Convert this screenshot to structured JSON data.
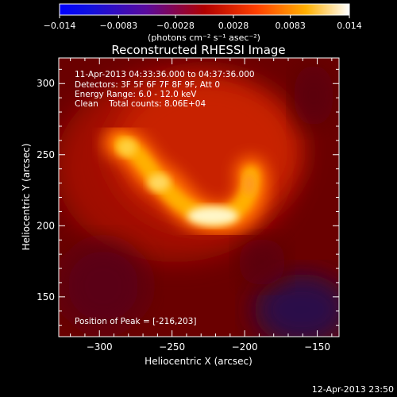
{
  "chart_data": {
    "type": "heatmap",
    "title": "Reconstructed RHESSI Image",
    "xlabel": "Heliocentric X (arcsec)",
    "ylabel": "Heliocentric Y (arcsec)",
    "xlim": [
      -328,
      -135
    ],
    "ylim": [
      122,
      318
    ],
    "x_ticks": [
      -300,
      -250,
      -200,
      -150
    ],
    "y_ticks": [
      150,
      200,
      250,
      300
    ],
    "colorbar": {
      "label": "(photons cm⁻² s⁻¹ asec⁻²)",
      "min": -0.014,
      "max": 0.014,
      "tick_labels": [
        "-0.014",
        "-0.0083",
        "-0.0028",
        "0.0028",
        "0.0083",
        "0.014"
      ],
      "colormap": "blue-purple-red-orange-yellow-white"
    },
    "annotations": {
      "time_range": "11-Apr-2013 04:33:36.000 to 04:37:36.000",
      "detectors": "Detectors: 3F 5F 6F 7F 8F 9F, Att 0",
      "energy": "Energy Range: 6.0 - 12.0 keV",
      "clean_counts": "Clean    Total counts: 8.06E+04",
      "peak": "Position of Peak = [-216,203]"
    },
    "source_peaks": [
      {
        "x": -216,
        "y": 203,
        "rel_intensity": 1.0
      },
      {
        "x": -248,
        "y": 227,
        "rel_intensity": 0.85
      },
      {
        "x": -275,
        "y": 258,
        "rel_intensity": 0.8
      },
      {
        "x": -195,
        "y": 228,
        "rel_intensity": 0.7
      }
    ],
    "timestamp": "12-Apr-2013 23:50"
  }
}
